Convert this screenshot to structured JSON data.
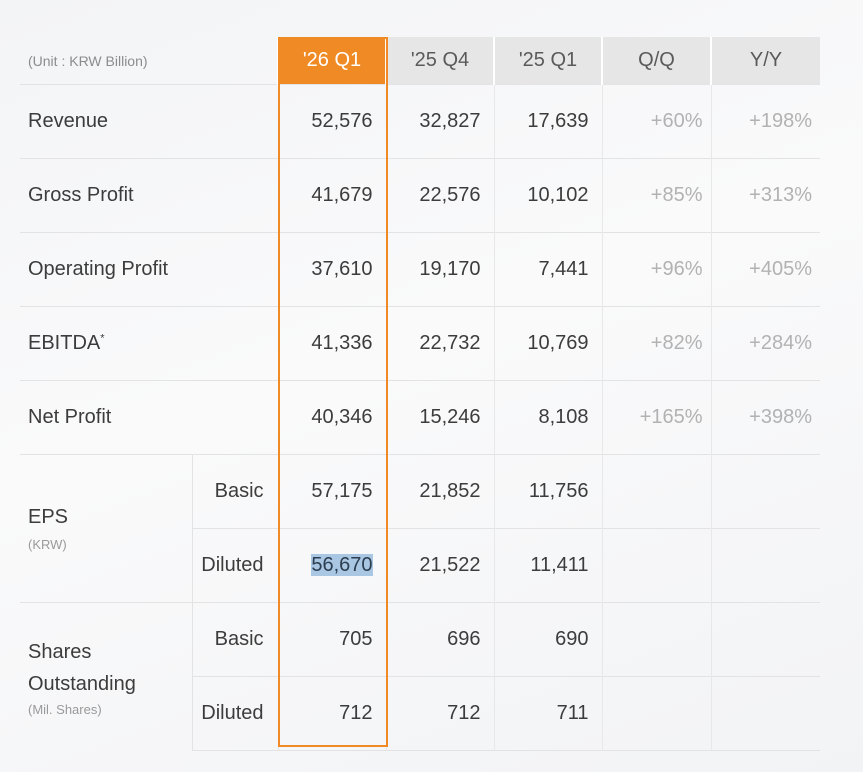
{
  "unit_label": "(Unit : KRW Billion)",
  "columns": [
    "'26 Q1",
    "'25 Q4",
    "'25 Q1",
    "Q/Q",
    "Y/Y"
  ],
  "rows": [
    {
      "label": "Revenue",
      "values": [
        "52,576",
        "32,827",
        "17,639"
      ],
      "qoq": "+60%",
      "yoy": "+198%"
    },
    {
      "label": "Gross Profit",
      "values": [
        "41,679",
        "22,576",
        "10,102"
      ],
      "qoq": "+85%",
      "yoy": "+313%"
    },
    {
      "label": "Operating Profit",
      "values": [
        "37,610",
        "19,170",
        "7,441"
      ],
      "qoq": "+96%",
      "yoy": "+405%"
    },
    {
      "label": "EBITDA",
      "footnote_mark": "*",
      "values": [
        "41,336",
        "22,732",
        "10,769"
      ],
      "qoq": "+82%",
      "yoy": "+284%"
    },
    {
      "label": "Net Profit",
      "values": [
        "40,346",
        "15,246",
        "8,108"
      ],
      "qoq": "+165%",
      "yoy": "+398%"
    }
  ],
  "eps": {
    "label": "EPS",
    "unit": "(KRW)",
    "rows": [
      {
        "label": "Basic",
        "values": [
          "57,175",
          "21,852",
          "11,756"
        ]
      },
      {
        "label": "Diluted",
        "values": [
          "56,670",
          "21,522",
          "11,411"
        ]
      }
    ]
  },
  "shares": {
    "label_line1": "Shares",
    "label_line2": "Outstanding",
    "unit": "(Mil. Shares)",
    "rows": [
      {
        "label": "Basic",
        "values": [
          "705",
          "696",
          "690"
        ]
      },
      {
        "label": "Diluted",
        "values": [
          "712",
          "712",
          "711"
        ]
      }
    ]
  },
  "colors": {
    "highlight": "#f08a24",
    "header_bg": "#e6e6e7",
    "text_selection": "#a9c6e3"
  }
}
